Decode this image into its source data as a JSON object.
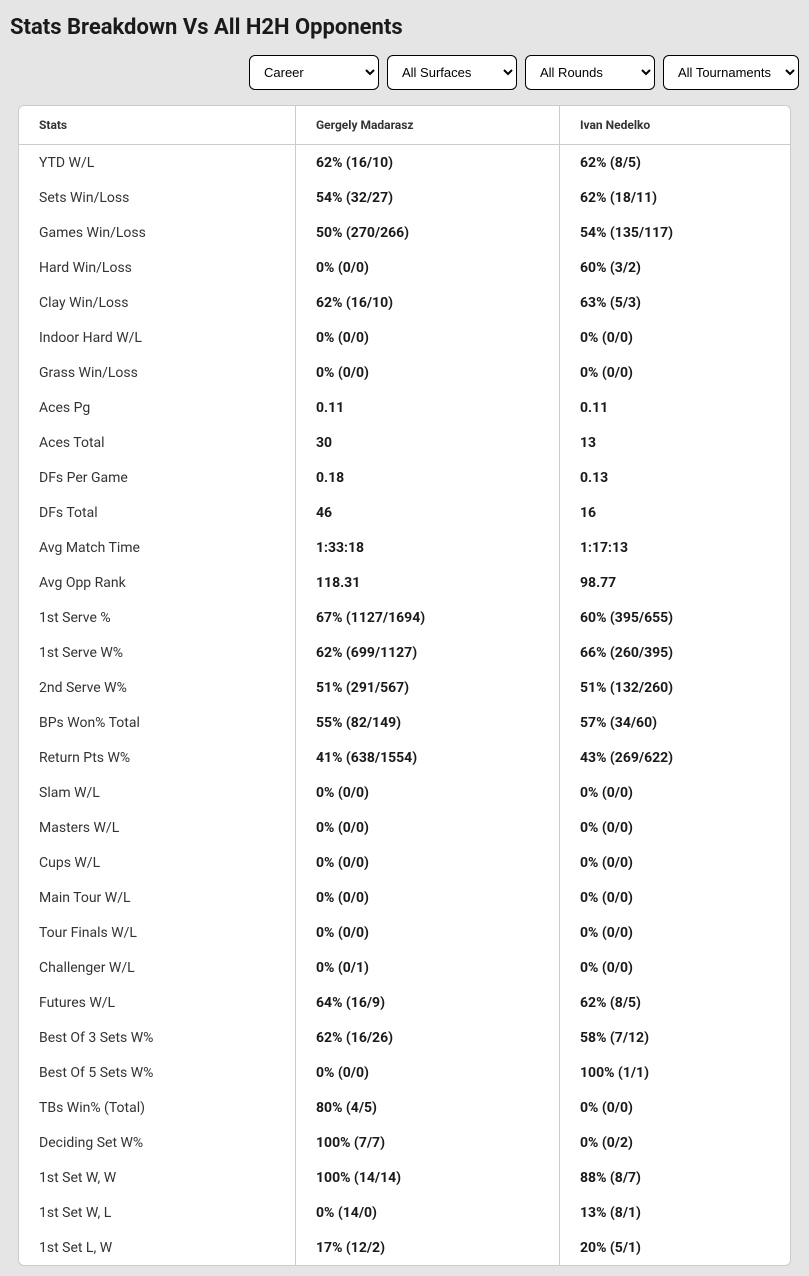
{
  "title": "Stats Breakdown Vs All H2H Opponents",
  "filters": {
    "timeframe": "Career",
    "surface": "All Surfaces",
    "round": "All Rounds",
    "tournament": "All Tournaments"
  },
  "headers": {
    "stats": "Stats",
    "player1": "Gergely Madarasz",
    "player2": "Ivan Nedelko"
  },
  "rows": [
    {
      "stat": "YTD W/L",
      "p1": "62% (16/10)",
      "p2": "62% (8/5)"
    },
    {
      "stat": "Sets Win/Loss",
      "p1": "54% (32/27)",
      "p2": "62% (18/11)"
    },
    {
      "stat": "Games Win/Loss",
      "p1": "50% (270/266)",
      "p2": "54% (135/117)"
    },
    {
      "stat": "Hard Win/Loss",
      "p1": "0% (0/0)",
      "p2": "60% (3/2)"
    },
    {
      "stat": "Clay Win/Loss",
      "p1": "62% (16/10)",
      "p2": "63% (5/3)"
    },
    {
      "stat": "Indoor Hard W/L",
      "p1": "0% (0/0)",
      "p2": "0% (0/0)"
    },
    {
      "stat": "Grass Win/Loss",
      "p1": "0% (0/0)",
      "p2": "0% (0/0)"
    },
    {
      "stat": "Aces Pg",
      "p1": "0.11",
      "p2": "0.11"
    },
    {
      "stat": "Aces Total",
      "p1": "30",
      "p2": "13"
    },
    {
      "stat": "DFs Per Game",
      "p1": "0.18",
      "p2": "0.13"
    },
    {
      "stat": "DFs Total",
      "p1": "46",
      "p2": "16"
    },
    {
      "stat": "Avg Match Time",
      "p1": "1:33:18",
      "p2": "1:17:13"
    },
    {
      "stat": "Avg Opp Rank",
      "p1": "118.31",
      "p2": "98.77"
    },
    {
      "stat": "1st Serve %",
      "p1": "67% (1127/1694)",
      "p2": "60% (395/655)"
    },
    {
      "stat": "1st Serve W%",
      "p1": "62% (699/1127)",
      "p2": "66% (260/395)"
    },
    {
      "stat": "2nd Serve W%",
      "p1": "51% (291/567)",
      "p2": "51% (132/260)"
    },
    {
      "stat": "BPs Won% Total",
      "p1": "55% (82/149)",
      "p2": "57% (34/60)"
    },
    {
      "stat": "Return Pts W%",
      "p1": "41% (638/1554)",
      "p2": "43% (269/622)"
    },
    {
      "stat": "Slam W/L",
      "p1": "0% (0/0)",
      "p2": "0% (0/0)"
    },
    {
      "stat": "Masters W/L",
      "p1": "0% (0/0)",
      "p2": "0% (0/0)"
    },
    {
      "stat": "Cups W/L",
      "p1": "0% (0/0)",
      "p2": "0% (0/0)"
    },
    {
      "stat": "Main Tour W/L",
      "p1": "0% (0/0)",
      "p2": "0% (0/0)"
    },
    {
      "stat": "Tour Finals W/L",
      "p1": "0% (0/0)",
      "p2": "0% (0/0)"
    },
    {
      "stat": "Challenger W/L",
      "p1": "0% (0/1)",
      "p2": "0% (0/0)"
    },
    {
      "stat": "Futures W/L",
      "p1": "64% (16/9)",
      "p2": "62% (8/5)"
    },
    {
      "stat": "Best Of 3 Sets W%",
      "p1": "62% (16/26)",
      "p2": "58% (7/12)"
    },
    {
      "stat": "Best Of 5 Sets W%",
      "p1": "0% (0/0)",
      "p2": "100% (1/1)"
    },
    {
      "stat": "TBs Win% (Total)",
      "p1": "80% (4/5)",
      "p2": "0% (0/0)"
    },
    {
      "stat": "Deciding Set W%",
      "p1": "100% (7/7)",
      "p2": "0% (0/2)"
    },
    {
      "stat": "1st Set W, W",
      "p1": "100% (14/14)",
      "p2": "88% (8/7)"
    },
    {
      "stat": "1st Set W, L",
      "p1": "0% (14/0)",
      "p2": "13% (8/1)"
    },
    {
      "stat": "1st Set L, W",
      "p1": "17% (12/2)",
      "p2": "20% (5/1)"
    }
  ]
}
